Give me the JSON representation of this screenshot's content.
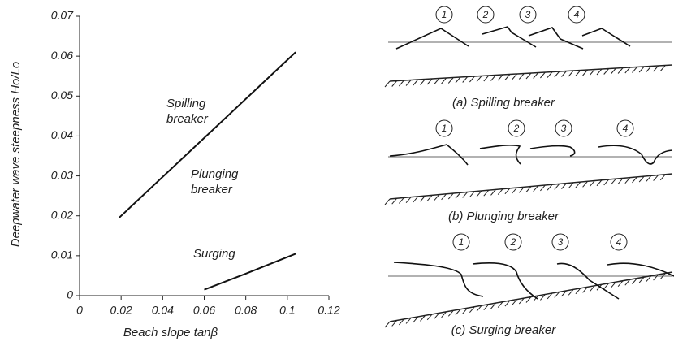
{
  "chart_data": {
    "type": "line",
    "x_label": "Beach slope tanβ",
    "y_label": "Deepwater wave steepness Ho/Lo",
    "annotations": [
      "Spilling breaker",
      "Plunging breaker",
      "Surging"
    ],
    "series": [
      {
        "color": "#111111",
        "x": [
          0.019,
          0.104
        ],
        "values": [
          0.0195,
          0.061
        ]
      },
      {
        "color": "#111111",
        "x": [
          0.06,
          0.08,
          0.104
        ],
        "values": [
          0.0015,
          0.0055,
          0.0105
        ]
      }
    ],
    "xlim": [
      0,
      0.12
    ],
    "xticks": [
      0,
      0.02,
      0.04,
      0.06,
      0.08,
      0.1,
      0.12
    ],
    "ylim": [
      0,
      0.07
    ],
    "yticks": [
      0,
      0.01,
      0.02,
      0.03,
      0.04,
      0.05,
      0.06,
      0.07
    ]
  },
  "diagram": {
    "panels": [
      {
        "caption": "(a) Spilling breaker",
        "labels": [
          "1",
          "2",
          "3",
          "4"
        ]
      },
      {
        "caption": "(b) Plunging breaker",
        "labels": [
          "1",
          "2",
          "3",
          "4"
        ]
      },
      {
        "caption": "(c) Surging breaker",
        "labels": [
          "1",
          "2",
          "3",
          "4"
        ]
      }
    ]
  }
}
